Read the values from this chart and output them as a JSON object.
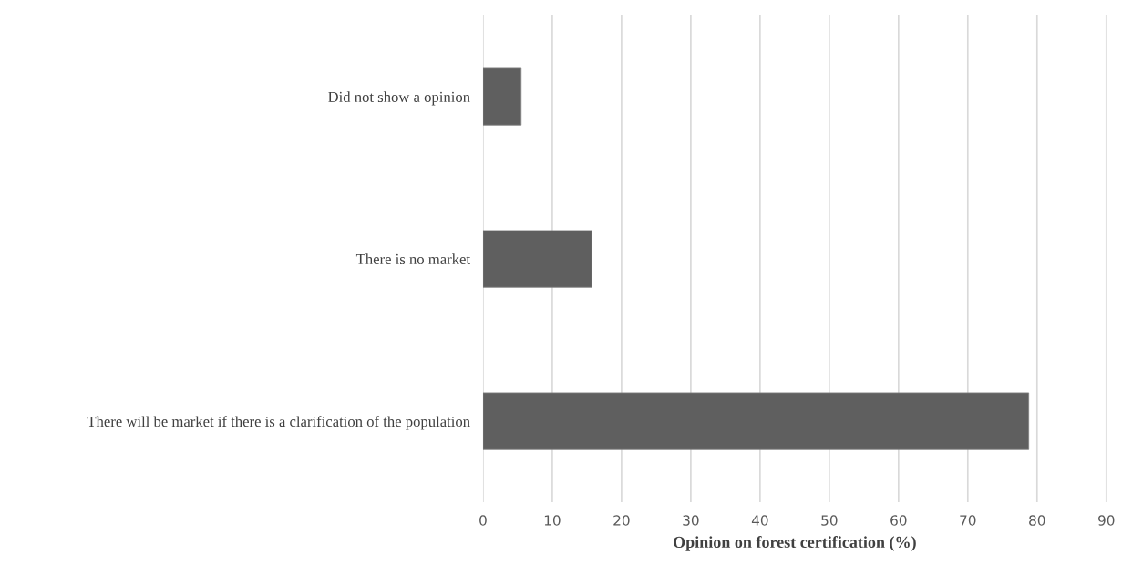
{
  "chart_data": {
    "type": "bar",
    "orientation": "horizontal",
    "xlabel": "Opinion on forest certification (%)",
    "categories": [
      "Did not show a opinion",
      "There is no market",
      "There will be market if there is a clarification of the population"
    ],
    "values": [
      5.5,
      15.7,
      78.8
    ],
    "color": "#5f5f5f",
    "xlim": [
      0,
      90
    ],
    "xticks": [
      0,
      10,
      20,
      30,
      40,
      50,
      60,
      70,
      80,
      90
    ],
    "grid": "x"
  }
}
